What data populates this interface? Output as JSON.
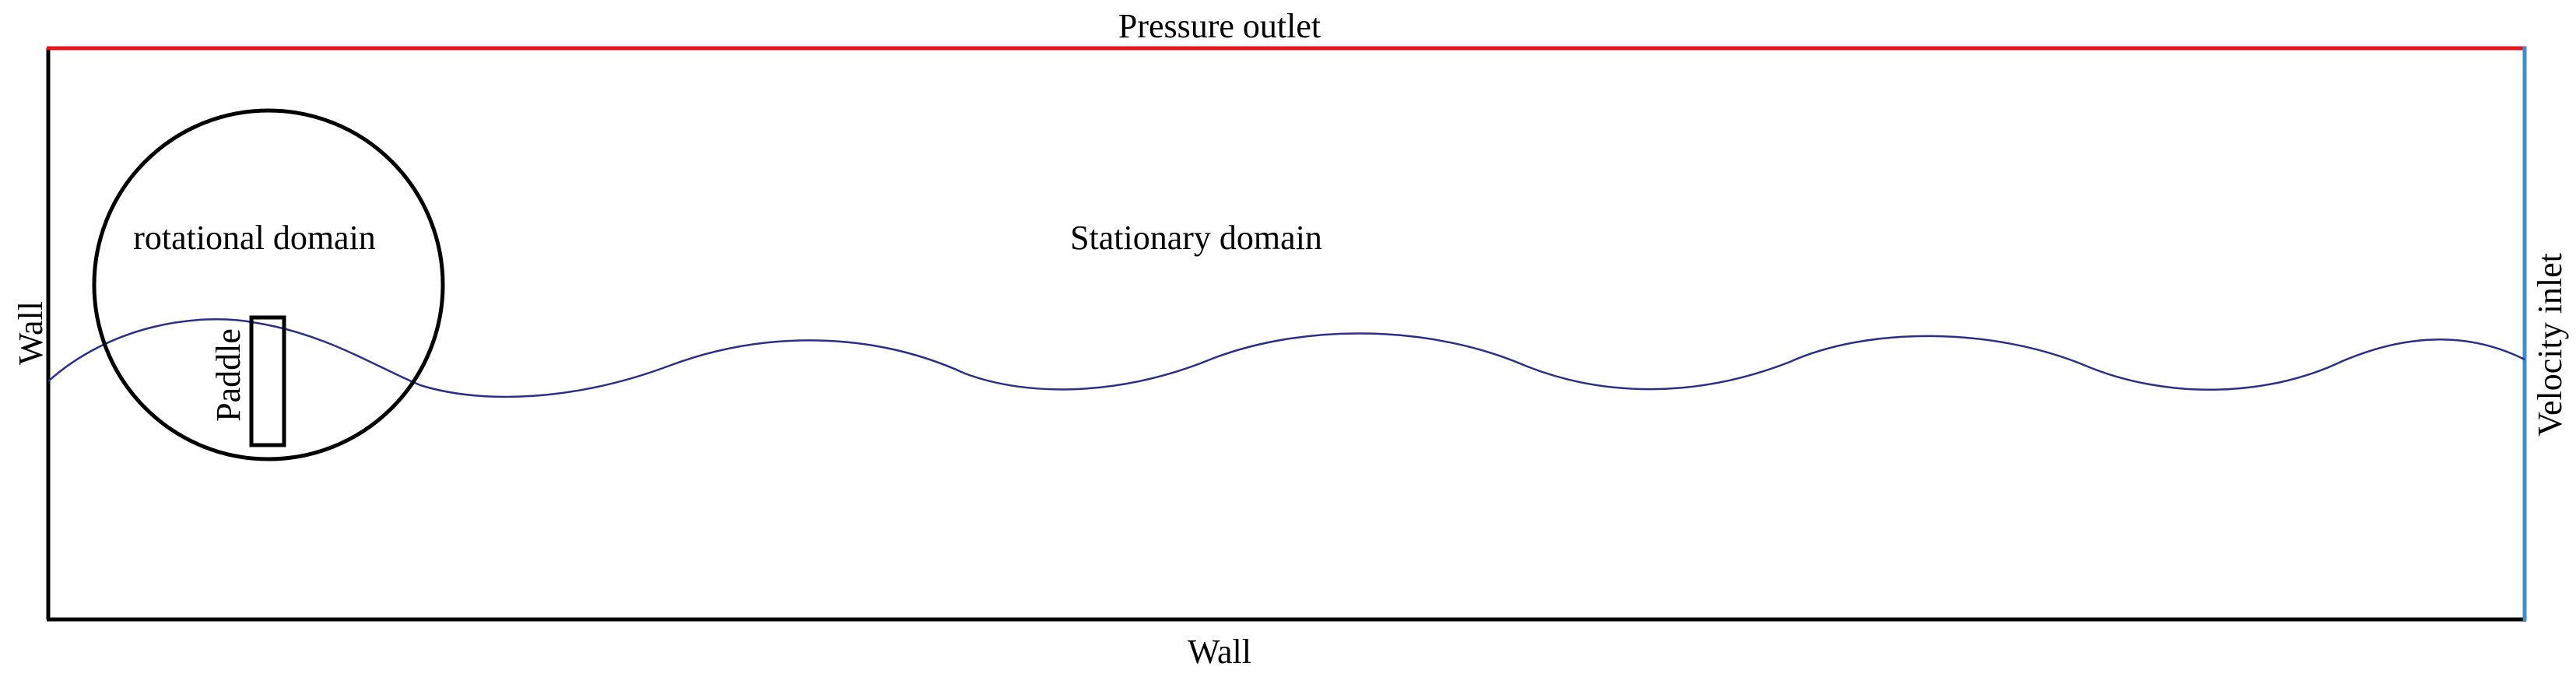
{
  "labels": {
    "top": "Pressure outlet",
    "bottom": "Wall",
    "left": "Wall",
    "right": "Velocity inlet",
    "rotational": "rotational domain",
    "stationary": "Stationary domain",
    "paddle": "Paddle"
  },
  "colors": {
    "pressure_outlet": "#e8141c",
    "velocity_inlet": "#3a8fd6",
    "wall": "#000000",
    "free_surface": "#2b2f8a",
    "rotational_domain": "#000000",
    "paddle": "#000000"
  }
}
